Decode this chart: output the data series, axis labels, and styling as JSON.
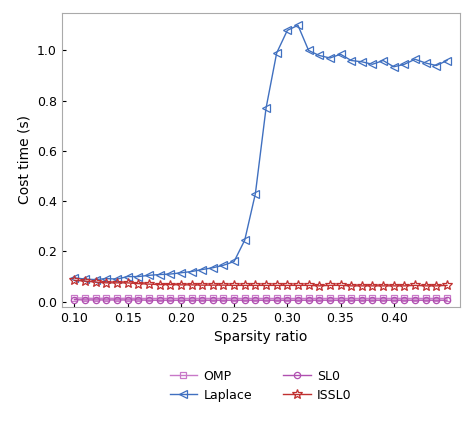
{
  "x": [
    0.1,
    0.11,
    0.12,
    0.13,
    0.14,
    0.15,
    0.16,
    0.17,
    0.18,
    0.19,
    0.2,
    0.21,
    0.22,
    0.23,
    0.24,
    0.25,
    0.26,
    0.27,
    0.28,
    0.29,
    0.3,
    0.31,
    0.32,
    0.33,
    0.34,
    0.35,
    0.36,
    0.37,
    0.38,
    0.39,
    0.4,
    0.41,
    0.42,
    0.43,
    0.44,
    0.45
  ],
  "OMP": [
    0.015,
    0.014,
    0.013,
    0.014,
    0.013,
    0.014,
    0.013,
    0.013,
    0.013,
    0.013,
    0.013,
    0.013,
    0.013,
    0.013,
    0.013,
    0.013,
    0.013,
    0.013,
    0.013,
    0.013,
    0.013,
    0.013,
    0.013,
    0.013,
    0.013,
    0.013,
    0.013,
    0.013,
    0.013,
    0.013,
    0.013,
    0.013,
    0.013,
    0.013,
    0.013,
    0.013
  ],
  "SL0": [
    0.008,
    0.007,
    0.007,
    0.007,
    0.007,
    0.007,
    0.007,
    0.006,
    0.006,
    0.006,
    0.006,
    0.006,
    0.006,
    0.006,
    0.006,
    0.006,
    0.006,
    0.006,
    0.006,
    0.006,
    0.006,
    0.006,
    0.006,
    0.006,
    0.006,
    0.006,
    0.006,
    0.006,
    0.006,
    0.006,
    0.006,
    0.006,
    0.006,
    0.006,
    0.006,
    0.006
  ],
  "Laplace": [
    0.095,
    0.09,
    0.088,
    0.092,
    0.09,
    0.1,
    0.1,
    0.105,
    0.108,
    0.11,
    0.115,
    0.12,
    0.128,
    0.135,
    0.145,
    0.16,
    0.245,
    0.43,
    0.77,
    0.99,
    1.08,
    1.1,
    1.0,
    0.98,
    0.97,
    0.985,
    0.96,
    0.955,
    0.945,
    0.96,
    0.935,
    0.945,
    0.965,
    0.95,
    0.94,
    0.96
  ],
  "ISSL0": [
    0.085,
    0.082,
    0.078,
    0.075,
    0.075,
    0.075,
    0.072,
    0.07,
    0.068,
    0.068,
    0.067,
    0.067,
    0.066,
    0.066,
    0.066,
    0.065,
    0.065,
    0.065,
    0.065,
    0.065,
    0.065,
    0.065,
    0.065,
    0.063,
    0.065,
    0.065,
    0.063,
    0.063,
    0.063,
    0.063,
    0.063,
    0.063,
    0.065,
    0.063,
    0.063,
    0.065
  ],
  "OMP_color": "#c878c8",
  "SL0_color": "#b050b0",
  "Laplace_color": "#4070c0",
  "ISSL0_color": "#c03030",
  "ylabel": "Cost time (s)",
  "xlabel": "Sparsity ratio",
  "ylim": [
    -0.02,
    1.15
  ],
  "xlim": [
    0.088,
    0.462
  ],
  "bg_color": "#ffffff",
  "xticks": [
    0.1,
    0.15,
    0.2,
    0.25,
    0.3,
    0.35,
    0.4
  ],
  "yticks": [
    0.0,
    0.2,
    0.4,
    0.6,
    0.8,
    1.0
  ]
}
